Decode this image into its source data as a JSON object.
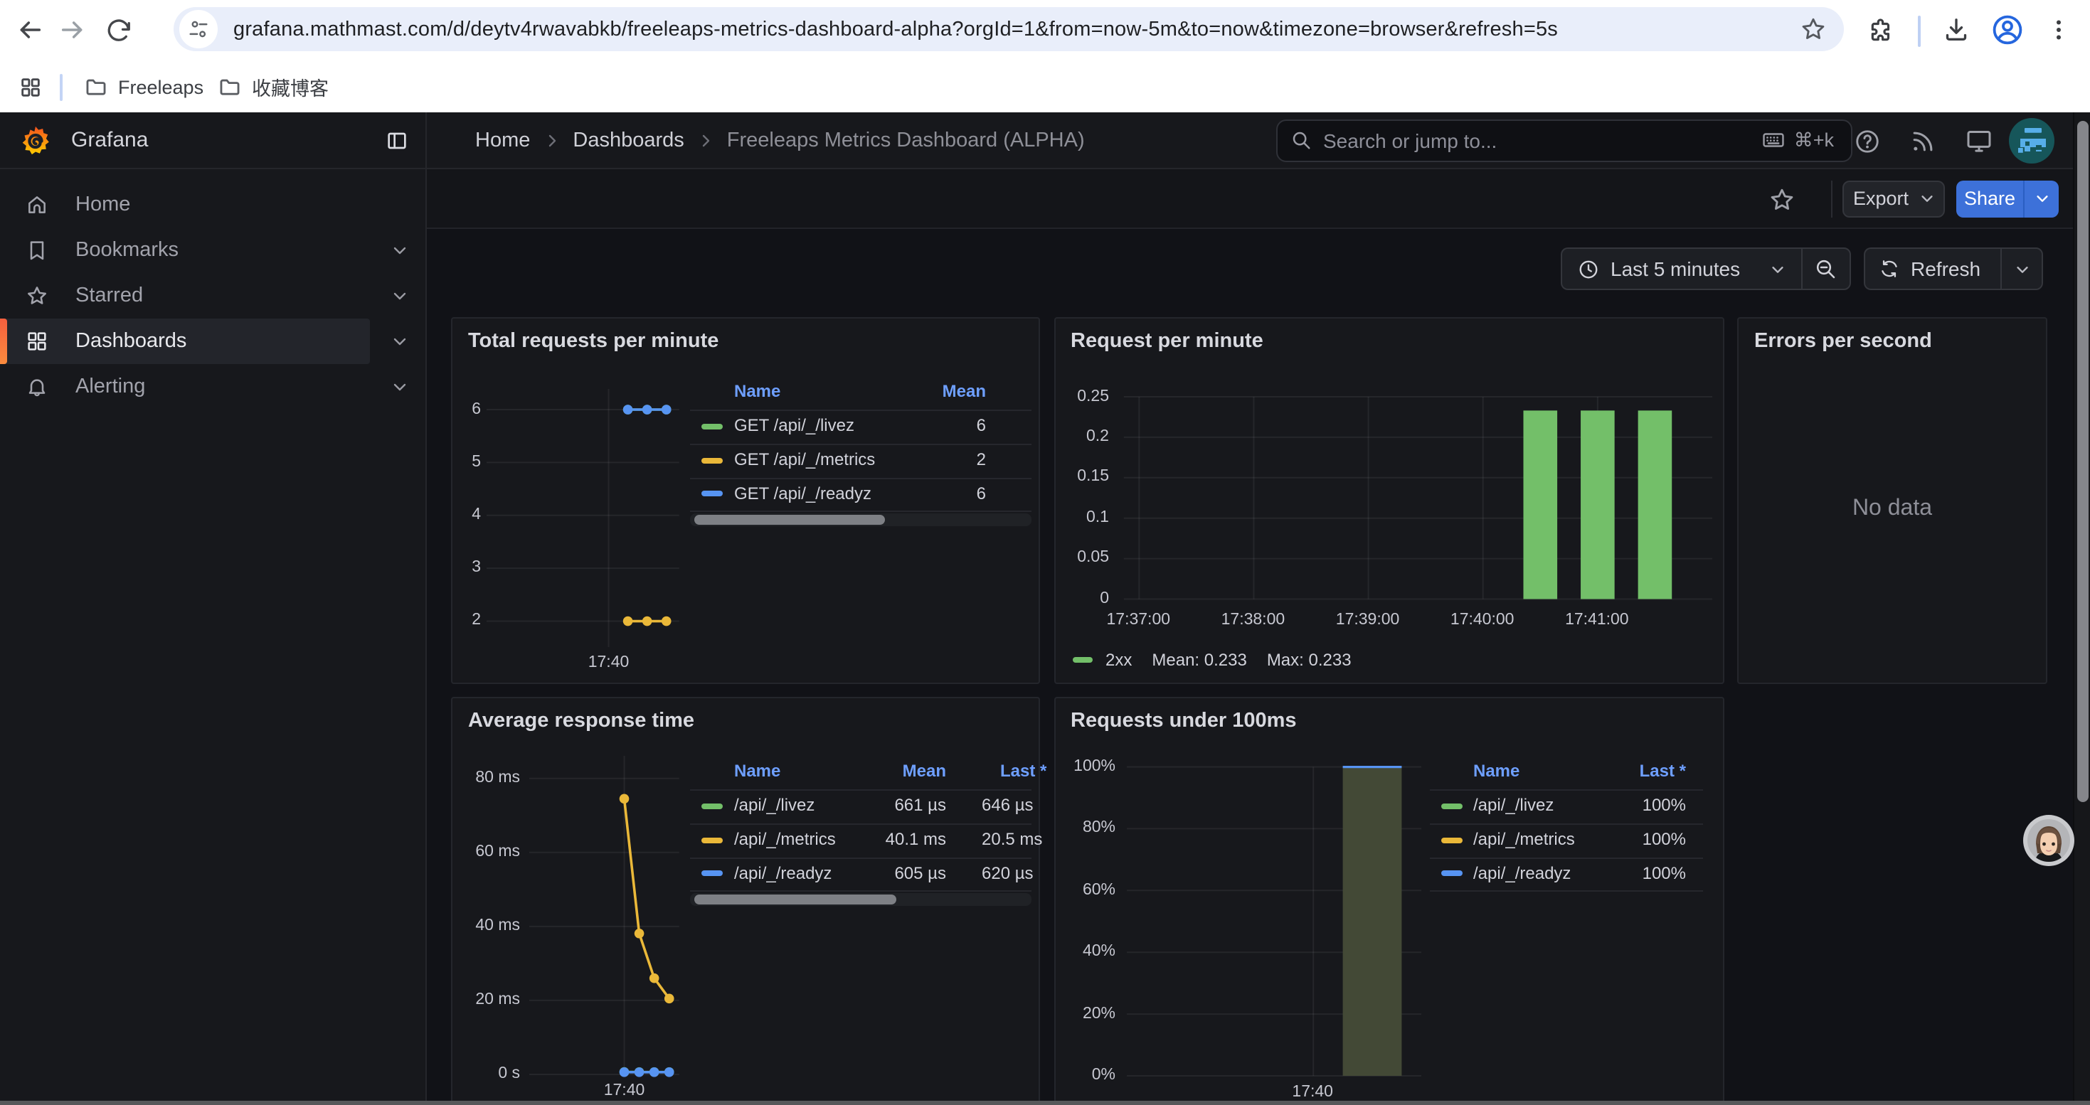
{
  "browser": {
    "url": "grafana.mathmast.com/d/deytv4rwavabkb/freeleaps-metrics-dashboard-alpha?orgId=1&from=now-5m&to=now&timezone=browser&refresh=5s",
    "bookmarks": [
      {
        "label": "Freeleaps"
      },
      {
        "label": "收藏博客"
      }
    ]
  },
  "sidebar": {
    "brand": "Grafana",
    "items": [
      {
        "label": "Home"
      },
      {
        "label": "Bookmarks"
      },
      {
        "label": "Starred"
      },
      {
        "label": "Dashboards"
      },
      {
        "label": "Alerting"
      }
    ]
  },
  "header": {
    "breadcrumbs": [
      {
        "label": "Home"
      },
      {
        "label": "Dashboards"
      },
      {
        "label": "Freeleaps Metrics Dashboard (ALPHA)"
      }
    ],
    "search_placeholder": "Search or jump to...",
    "search_shortcut": "⌘+k"
  },
  "toolbar": {
    "export_label": "Export",
    "share_label": "Share"
  },
  "timebar": {
    "range_label": "Last 5 minutes",
    "refresh_label": "Refresh"
  },
  "colors": {
    "green": "#73BF69",
    "yellow": "#EAB839",
    "blue": "#5794F2",
    "share_blue": "#3D71D9",
    "link_blue": "#6E9FFF",
    "bar_fill_blend": "#434936",
    "accent_orange": "#F55F3E"
  },
  "chart_data": [
    {
      "type": "line",
      "title": "Total requests per minute",
      "x_domain": [
        "17:36:50",
        "17:41:50"
      ],
      "x_ticks": [
        {
          "time": "17:40:00",
          "label": "17:40"
        }
      ],
      "ylim": [
        1.51,
        6.39
      ],
      "y_ticks": [
        {
          "v": 2,
          "label": "2"
        },
        {
          "v": 3,
          "label": "3"
        },
        {
          "v": 4,
          "label": "4"
        },
        {
          "v": 5,
          "label": "5"
        },
        {
          "v": 6,
          "label": "6"
        }
      ],
      "series": [
        {
          "name": "GET /api/_/livez",
          "color": "green",
          "points": [
            {
              "t": "17:40:30",
              "v": 6
            },
            {
              "t": "17:41:00",
              "v": 6
            },
            {
              "t": "17:41:30",
              "v": 6
            }
          ],
          "mean": "6"
        },
        {
          "name": "GET /api/_/metrics",
          "color": "yellow",
          "points": [
            {
              "t": "17:40:30",
              "v": 2
            },
            {
              "t": "17:41:00",
              "v": 2
            },
            {
              "t": "17:41:30",
              "v": 2
            }
          ],
          "mean": "2"
        },
        {
          "name": "GET /api/_/readyz",
          "color": "blue",
          "points": [
            {
              "t": "17:40:30",
              "v": 6
            },
            {
              "t": "17:41:00",
              "v": 6
            },
            {
              "t": "17:41:30",
              "v": 6
            }
          ],
          "mean": "6"
        }
      ],
      "legend": {
        "type": "table",
        "columns": [
          "Name",
          "Mean"
        ]
      }
    },
    {
      "type": "bar",
      "title": "Request per minute",
      "x_domain": [
        "17:36:52",
        "17:42:00"
      ],
      "x_ticks": [
        {
          "time": "17:37:00",
          "label": "17:37:00"
        },
        {
          "time": "17:38:00",
          "label": "17:38:00"
        },
        {
          "time": "17:39:00",
          "label": "17:39:00"
        },
        {
          "time": "17:40:00",
          "label": "17:40:00"
        },
        {
          "time": "17:41:00",
          "label": "17:41:00"
        }
      ],
      "ylim": [
        0,
        0.25
      ],
      "y_ticks": [
        {
          "v": 0,
          "label": "0"
        },
        {
          "v": 0.05,
          "label": "0.05"
        },
        {
          "v": 0.1,
          "label": "0.1"
        },
        {
          "v": 0.15,
          "label": "0.15"
        },
        {
          "v": 0.2,
          "label": "0.2"
        },
        {
          "v": 0.25,
          "label": "0.25"
        }
      ],
      "series": [
        {
          "name": "2xx",
          "color": "green",
          "bars": [
            {
              "t": "17:40:30",
              "v": 0.233
            },
            {
              "t": "17:41:00",
              "v": 0.233
            },
            {
              "t": "17:41:30",
              "v": 0.233
            }
          ],
          "mean": "0.233",
          "max": "0.233"
        }
      ],
      "legend": {
        "type": "inline",
        "items": [
          "2xx",
          "Mean: 0.233",
          "Max: 0.233"
        ]
      }
    },
    {
      "type": "none",
      "title": "Errors per second",
      "message": "No data"
    },
    {
      "type": "line",
      "title": "Average response time",
      "x_domain": [
        "17:36:50",
        "17:41:50"
      ],
      "x_ticks": [
        {
          "time": "17:40:00",
          "label": "17:40"
        }
      ],
      "ylim": [
        0,
        86.1
      ],
      "y_ticks": [
        {
          "v": 0,
          "label": "0 s"
        },
        {
          "v": 20,
          "label": "20 ms"
        },
        {
          "v": 40,
          "label": "40 ms"
        },
        {
          "v": 60,
          "label": "60 ms"
        },
        {
          "v": 80,
          "label": "80 ms"
        }
      ],
      "series": [
        {
          "name": "/api/_/livez",
          "color": "green",
          "points": [
            {
              "t": "17:40:00",
              "v": 0.66
            },
            {
              "t": "17:40:30",
              "v": 0.65
            },
            {
              "t": "17:41:00",
              "v": 0.64
            },
            {
              "t": "17:41:30",
              "v": 0.65
            }
          ],
          "mean": "661 µs",
          "last": "646 µs"
        },
        {
          "name": "/api/_/metrics",
          "color": "yellow",
          "points": [
            {
              "t": "17:40:00",
              "v": 74.5
            },
            {
              "t": "17:40:30",
              "v": 38.1
            },
            {
              "t": "17:41:00",
              "v": 26.0
            },
            {
              "t": "17:41:30",
              "v": 20.5
            }
          ],
          "mean": "40.1 ms",
          "last": "20.5 ms"
        },
        {
          "name": "/api/_/readyz",
          "color": "blue",
          "points": [
            {
              "t": "17:40:00",
              "v": 0.61
            },
            {
              "t": "17:40:30",
              "v": 0.6
            },
            {
              "t": "17:41:00",
              "v": 0.62
            },
            {
              "t": "17:41:30",
              "v": 0.62
            }
          ],
          "mean": "605 µs",
          "last": "620 µs"
        }
      ],
      "legend": {
        "type": "table",
        "columns": [
          "Name",
          "Mean",
          "Last *"
        ]
      }
    },
    {
      "type": "bar-range",
      "title": "Requests under 100ms",
      "x_domain": [
        "17:36:50",
        "17:41:50"
      ],
      "x_ticks": [
        {
          "time": "17:40:00",
          "label": "17:40"
        }
      ],
      "ylim": [
        0,
        100
      ],
      "y_ticks": [
        {
          "v": 0,
          "label": "0%"
        },
        {
          "v": 20,
          "label": "20%"
        },
        {
          "v": 40,
          "label": "40%"
        },
        {
          "v": 60,
          "label": "60%"
        },
        {
          "v": 80,
          "label": "80%"
        },
        {
          "v": 100,
          "label": "100%"
        }
      ],
      "bars": [
        {
          "t1": "17:40:30",
          "t2": "17:41:30",
          "v": 100
        }
      ],
      "series": [
        {
          "name": "/api/_/livez",
          "color": "green",
          "last": "100%"
        },
        {
          "name": "/api/_/metrics",
          "color": "yellow",
          "last": "100%"
        },
        {
          "name": "/api/_/readyz",
          "color": "blue",
          "last": "100%"
        }
      ],
      "legend": {
        "type": "table",
        "columns": [
          "Name",
          "Last *"
        ]
      }
    }
  ]
}
